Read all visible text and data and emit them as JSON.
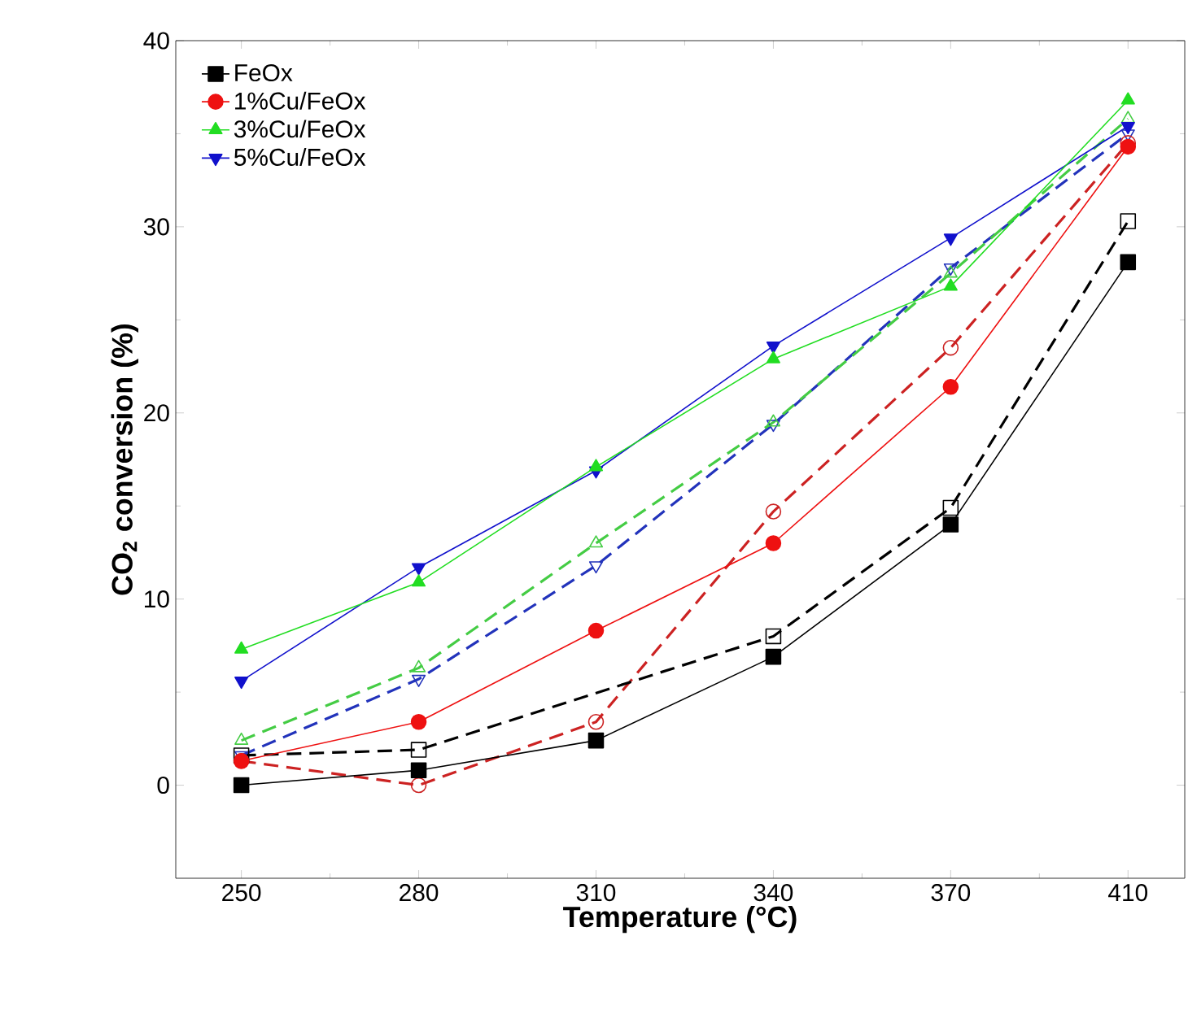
{
  "chart_data": {
    "type": "line",
    "xlabel": "Temperature (°C)",
    "ylabel": "CO$_{2}$ conversion (%)",
    "categories": [
      "250",
      "280",
      "310",
      "340",
      "370",
      "410"
    ],
    "ylim": [
      -5,
      40
    ],
    "yticks": [
      0,
      10,
      20,
      30,
      40
    ],
    "legend": "top left",
    "series": [
      {
        "name": "FeOx",
        "color": "#000000",
        "marker": "square",
        "line_style": "solid",
        "values": [
          0,
          0.8,
          2.4,
          6.9,
          14.0,
          28.1
        ]
      },
      {
        "name": "1%Cu/FeOx",
        "color": "#ee1111",
        "marker": "circle",
        "line_style": "solid",
        "values": [
          1.3,
          3.4,
          8.3,
          13.0,
          21.4,
          34.3
        ]
      },
      {
        "name": "3%Cu/FeOx",
        "color": "#22dd22",
        "marker": "triangle",
        "line_style": "solid",
        "values": [
          7.3,
          10.9,
          17.1,
          22.9,
          26.8,
          36.8
        ]
      },
      {
        "name": "5%Cu/FeOx",
        "color": "#1111cc",
        "marker": "triangle_down",
        "line_style": "solid",
        "values": [
          5.6,
          11.7,
          16.9,
          23.6,
          29.4,
          35.4
        ]
      },
      {
        "color": "#000000",
        "marker": "square",
        "line_style": "dashed",
        "values": [
          1.6,
          1.9,
          null,
          8.0,
          14.9,
          30.3
        ]
      },
      {
        "color": "#cc2222",
        "marker": "circle",
        "line_style": "dashed",
        "values": [
          1.3,
          0,
          3.4,
          14.7,
          23.5,
          34.5
        ]
      },
      {
        "color": "#44cc44",
        "marker": "triangle",
        "line_style": "dashed",
        "values": [
          2.4,
          6.3,
          13.0,
          19.5,
          27.5,
          35.8
        ]
      },
      {
        "color": "#2233bb",
        "marker": "triangle_down",
        "line_style": "dashed",
        "values": [
          1.6,
          5.7,
          11.8,
          19.4,
          27.8,
          35.0
        ]
      }
    ]
  }
}
